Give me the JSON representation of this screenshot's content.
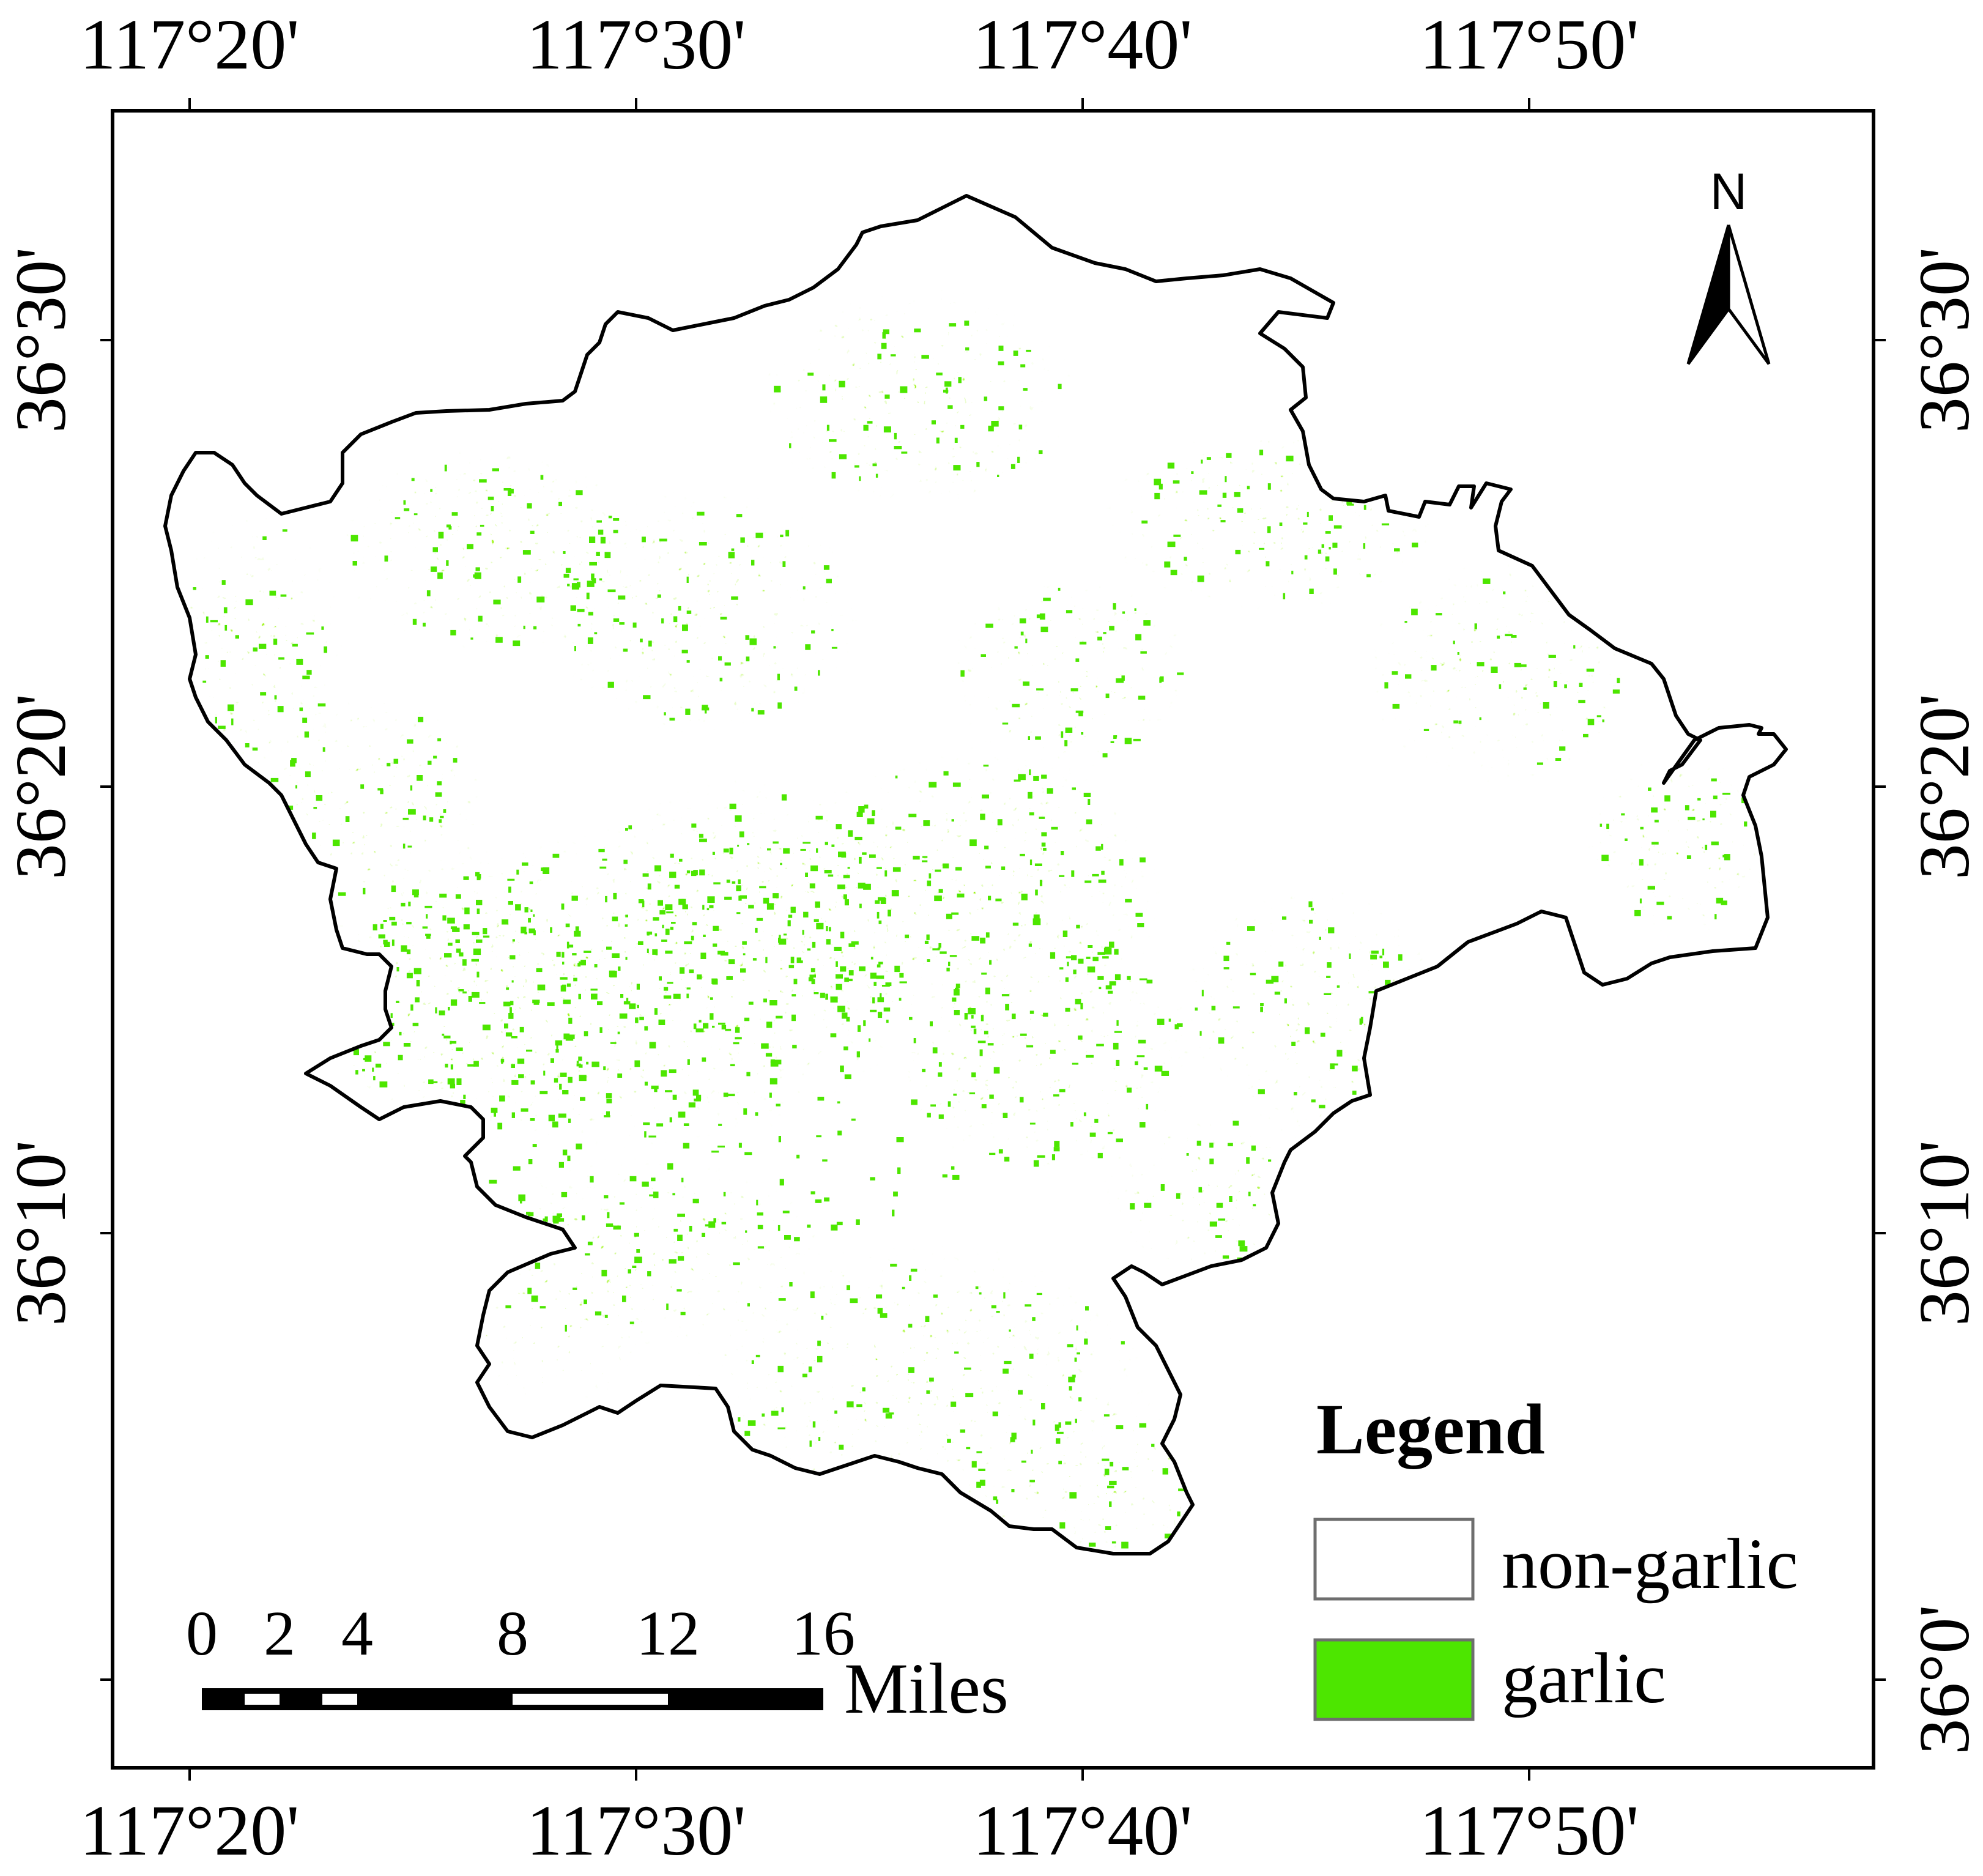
{
  "map": {
    "colors": {
      "garlic": "#4de600",
      "non_garlic": "#ffffff",
      "boundary": "#000000",
      "frame": "#000000",
      "legend_box_border": "#6e6e6e"
    },
    "graticule": {
      "longitudes": [
        "117°20'",
        "117°30'",
        "117°40'",
        "117°50'"
      ],
      "latitudes": [
        "36°30'",
        "36°20'",
        "36°10'",
        "36°0'"
      ]
    },
    "north_arrow": {
      "label": "N",
      "icon": "north-arrow-icon"
    },
    "scale_bar": {
      "ticks": [
        "0",
        "2",
        "4",
        "8",
        "12",
        "16"
      ],
      "unit": "Miles"
    },
    "legend": {
      "title": "Legend",
      "items": [
        {
          "label": "non-garlic",
          "color": "#ffffff"
        },
        {
          "label": "garlic",
          "color": "#4de600"
        }
      ]
    }
  }
}
